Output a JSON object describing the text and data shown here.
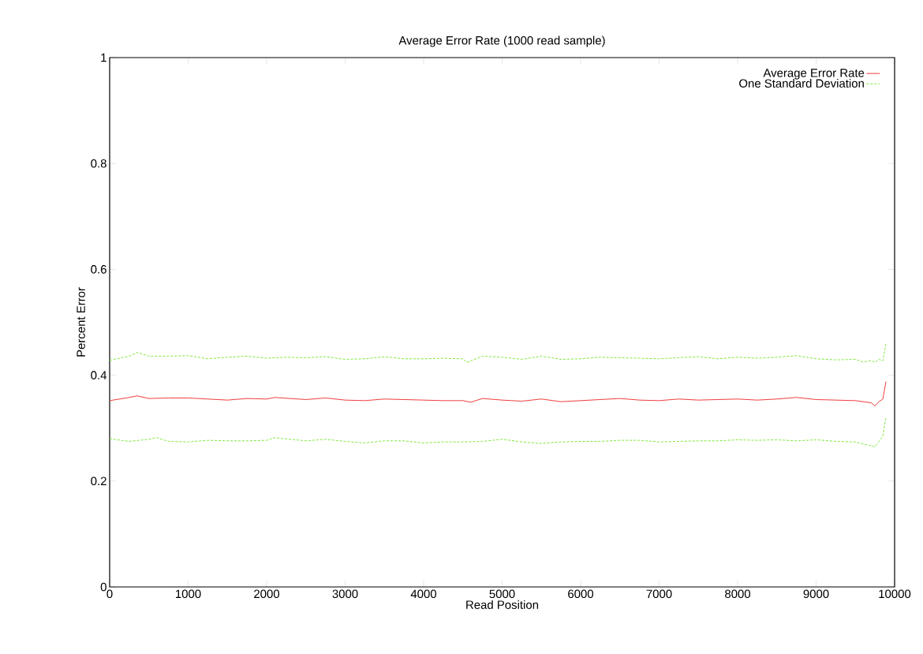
{
  "chart_data": {
    "type": "line",
    "title": "Average Error Rate (1000 read sample)",
    "xlabel": "Read Position",
    "ylabel": "Percent Error",
    "xlim": [
      0,
      10000
    ],
    "ylim": [
      0,
      1
    ],
    "xticks": [
      0,
      1000,
      2000,
      3000,
      4000,
      5000,
      6000,
      7000,
      8000,
      9000,
      10000
    ],
    "yticks": [
      0,
      0.2,
      0.4,
      0.6,
      0.8,
      1
    ],
    "grid": false,
    "legend": "top right",
    "marker": "none",
    "series": [
      {
        "name": "Average Error Rate",
        "color": "#f03c3c",
        "line_style": "solid",
        "x": [
          0,
          250,
          350,
          500,
          750,
          1000,
          1250,
          1500,
          1750,
          2000,
          2100,
          2500,
          2750,
          3000,
          3250,
          3500,
          3750,
          4000,
          4250,
          4500,
          4600,
          4750,
          5000,
          5250,
          5500,
          5750,
          6000,
          6250,
          6500,
          6750,
          7000,
          7250,
          7500,
          7750,
          8000,
          8250,
          8500,
          8750,
          9000,
          9250,
          9500,
          9700,
          9750,
          9800,
          9850,
          9890
        ],
        "values": [
          0.352,
          0.358,
          0.361,
          0.356,
          0.357,
          0.357,
          0.355,
          0.353,
          0.356,
          0.355,
          0.358,
          0.354,
          0.357,
          0.353,
          0.352,
          0.355,
          0.354,
          0.353,
          0.352,
          0.352,
          0.349,
          0.356,
          0.353,
          0.351,
          0.355,
          0.35,
          0.352,
          0.354,
          0.356,
          0.353,
          0.352,
          0.355,
          0.353,
          0.354,
          0.355,
          0.353,
          0.355,
          0.358,
          0.354,
          0.353,
          0.352,
          0.348,
          0.342,
          0.35,
          0.355,
          0.388
        ]
      },
      {
        "name": "One Standard Deviation",
        "color": "#7ee83a",
        "line_style": "dashed",
        "x": [
          0,
          250,
          350,
          500,
          750,
          1000,
          1250,
          1500,
          1750,
          2000,
          2250,
          2500,
          2750,
          3000,
          3250,
          3500,
          3750,
          4000,
          4250,
          4500,
          4550,
          4750,
          5000,
          5250,
          5500,
          5750,
          6000,
          6250,
          6500,
          6750,
          7000,
          7250,
          7500,
          7750,
          8000,
          8250,
          8500,
          8750,
          9000,
          9250,
          9500,
          9600,
          9700,
          9750,
          9800,
          9850,
          9890
        ],
        "values": [
          0.428,
          0.436,
          0.443,
          0.436,
          0.436,
          0.437,
          0.431,
          0.434,
          0.436,
          0.432,
          0.434,
          0.433,
          0.435,
          0.43,
          0.431,
          0.435,
          0.431,
          0.431,
          0.432,
          0.431,
          0.424,
          0.436,
          0.434,
          0.43,
          0.436,
          0.43,
          0.431,
          0.434,
          0.433,
          0.432,
          0.431,
          0.433,
          0.435,
          0.431,
          0.434,
          0.432,
          0.434,
          0.437,
          0.431,
          0.429,
          0.43,
          0.425,
          0.428,
          0.424,
          0.43,
          0.427,
          0.46
        ]
      },
      {
        "color": "#7ee83a",
        "line_style": "dashed",
        "x": [
          0,
          250,
          500,
          600,
          750,
          1000,
          1250,
          1500,
          1750,
          2000,
          2100,
          2500,
          2750,
          3000,
          3250,
          3500,
          3750,
          4000,
          4250,
          4500,
          4750,
          5000,
          5250,
          5500,
          5750,
          6000,
          6250,
          6500,
          6750,
          7000,
          7250,
          7500,
          7750,
          8000,
          8250,
          8500,
          8750,
          9000,
          9250,
          9500,
          9600,
          9750,
          9800,
          9850,
          9890
        ],
        "values": [
          0.28,
          0.275,
          0.279,
          0.282,
          0.275,
          0.274,
          0.277,
          0.276,
          0.276,
          0.277,
          0.282,
          0.276,
          0.279,
          0.275,
          0.272,
          0.276,
          0.276,
          0.272,
          0.274,
          0.274,
          0.275,
          0.279,
          0.274,
          0.271,
          0.274,
          0.275,
          0.275,
          0.277,
          0.277,
          0.274,
          0.275,
          0.276,
          0.276,
          0.278,
          0.277,
          0.278,
          0.276,
          0.278,
          0.275,
          0.274,
          0.27,
          0.265,
          0.275,
          0.285,
          0.32
        ]
      }
    ]
  }
}
